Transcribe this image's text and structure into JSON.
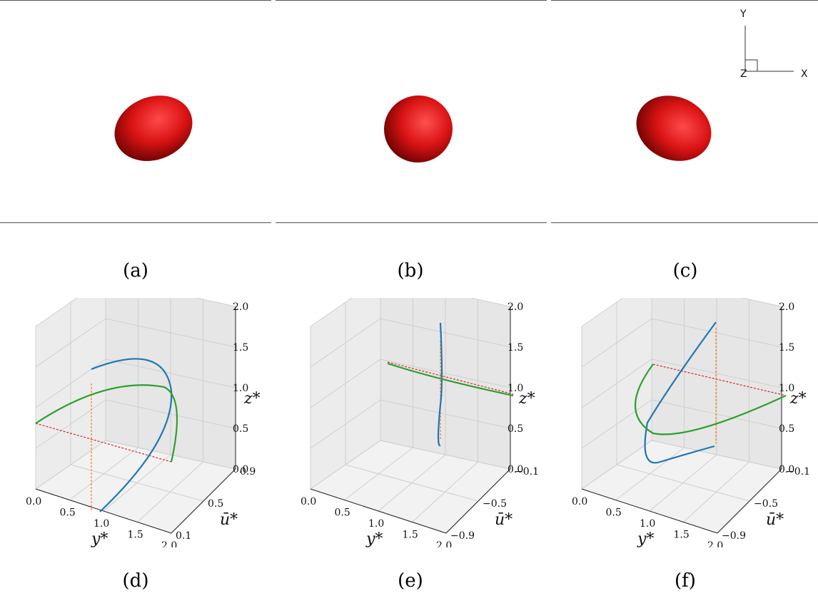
{
  "panels": [
    {
      "id": "a",
      "caption": "(a)"
    },
    {
      "id": "b",
      "caption": "(b)"
    },
    {
      "id": "c",
      "caption": "(c)"
    },
    {
      "id": "d",
      "caption": "(d)"
    },
    {
      "id": "e",
      "caption": "(e)"
    },
    {
      "id": "f",
      "caption": "(f)"
    }
  ],
  "triad": {
    "x": "X",
    "y": "Y",
    "z": "Z"
  },
  "colors": {
    "droplet": "#d91313",
    "curve_blue": "#1f77b4",
    "curve_green": "#2ca02c",
    "dash_red": "#d62728",
    "dash_orange": "#ff7f0e"
  },
  "plots": [
    {
      "ylabel": "y*",
      "ulabel": "ū*",
      "zlabel": "z*",
      "y_ticks": [
        "0.0",
        "0.5",
        "1.0",
        "1.5",
        "2.0"
      ],
      "u_ticks": [
        "0.1",
        "0.5",
        "0.9"
      ],
      "z_ticks": [
        "0.0",
        "0.5",
        "1.0",
        "1.5",
        "2.0"
      ]
    },
    {
      "ylabel": "y*",
      "ulabel": "ū*",
      "zlabel": "z*",
      "y_ticks": [
        "0.0",
        "0.5",
        "1.0",
        "1.5",
        "2.0"
      ],
      "u_ticks": [
        "−0.9",
        "−0.5",
        "−0.1"
      ],
      "z_ticks": [
        "0.0",
        "0.5",
        "1.0",
        "1.5",
        "2.0"
      ]
    },
    {
      "ylabel": "y*",
      "ulabel": "ū*",
      "zlabel": "z*",
      "y_ticks": [
        "0.0",
        "0.5",
        "1.0",
        "1.5",
        "2.0"
      ],
      "u_ticks": [
        "−0.9",
        "−0.5",
        "−0.1"
      ],
      "z_ticks": [
        "0.0",
        "0.5",
        "1.0",
        "1.5",
        "2.0"
      ]
    }
  ]
}
